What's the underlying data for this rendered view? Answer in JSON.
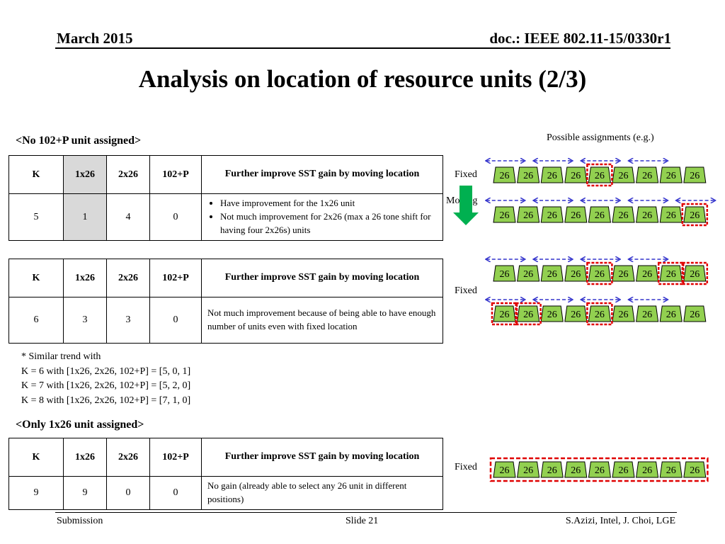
{
  "header": {
    "date": "March 2015",
    "doc": "doc.: IEEE 802.11-15/0330r1"
  },
  "title": "Analysis on location of resource units (2/3)",
  "section1": {
    "heading": "<No 102+P unit assigned>",
    "table1": {
      "headers": [
        "K",
        "1x26",
        "2x26",
        "102+P",
        "Further improve SST gain by moving location"
      ],
      "row": [
        "5",
        "1",
        "4",
        "0"
      ],
      "desc": [
        "Have improvement for the 1x26 unit",
        "Not much improvement for 2x26 (max a 26 tone shift for having four 2x26s) units"
      ]
    },
    "table2": {
      "headers": [
        "K",
        "1x26",
        "2x26",
        "102+P",
        "Further improve SST gain by moving location"
      ],
      "row": [
        "6",
        "3",
        "3",
        "0"
      ],
      "desc": "Not much improvement  because of being able to have enough number of units even with fixed location"
    }
  },
  "note": [
    "* Similar trend with",
    "K = 6 with [1x26, 2x26, 102+P] = [5, 0, 1]",
    "K = 7 with [1x26, 2x26, 102+P] = [5, 2, 0]",
    "K = 8 with [1x26, 2x26, 102+P] = [7, 1, 0]"
  ],
  "section2": {
    "heading": "<Only 1x26 unit assigned>",
    "table3": {
      "headers": [
        "K",
        "1x26",
        "2x26",
        "102+P",
        "Further improve SST gain by moving location"
      ],
      "row": [
        "9",
        "9",
        "0",
        "0"
      ],
      "desc": "No gain (already able to select any 26 unit in different positions)"
    }
  },
  "diagram": {
    "caption": "Possible assignments (e.g.)",
    "unit_label": "26",
    "unit_color": "#92d050",
    "highlight_color": "#e00000",
    "arrow_color": "#3333cc",
    "down_arrow_color": "#00b050",
    "label_fixed": "Fixed",
    "label_moving": "Moving",
    "rows": [
      {
        "highlight": [
          5
        ]
      },
      {
        "highlight": [
          9
        ]
      },
      {
        "highlight": [
          5,
          8,
          9
        ]
      },
      {
        "highlight": [
          1,
          2,
          5
        ]
      },
      {
        "highlight": [
          1,
          2,
          3,
          4,
          5,
          6,
          7,
          8,
          9
        ]
      }
    ]
  },
  "footer": {
    "left": "Submission",
    "center": "Slide 21",
    "right": "S.Azizi, Intel, J. Choi, LGE"
  }
}
